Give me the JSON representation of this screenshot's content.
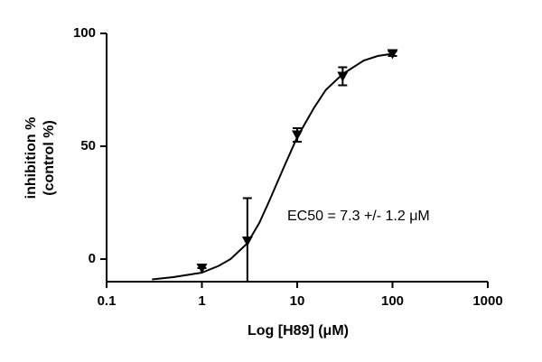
{
  "chart_data": {
    "type": "dose-response",
    "xlabel": "Log [H89] (μM)",
    "ylabel": [
      "inhibition %",
      "(control %)"
    ],
    "annotation": "EC50 = 7.3 +/- 1.2 μM",
    "log_x": true,
    "xlim": [
      0.1,
      1000
    ],
    "xticks": [
      0.1,
      1,
      10,
      100,
      1000
    ],
    "ylim": [
      -10,
      100
    ],
    "yticks": [
      0,
      50,
      100
    ],
    "color": "#000000",
    "x": [
      1,
      3,
      10,
      30,
      100
    ],
    "values": [
      -4,
      8,
      55,
      81,
      91
    ],
    "errors": [
      0,
      19,
      3,
      4,
      1
    ],
    "fit": {
      "x": [
        0.3,
        0.5,
        1,
        1.5,
        2,
        3,
        4,
        5,
        7.3,
        10,
        15,
        20,
        30,
        50,
        70,
        100
      ],
      "values": [
        -9,
        -8,
        -6,
        -3,
        0,
        7,
        16,
        25,
        41,
        54,
        67,
        75,
        82,
        88,
        90,
        91
      ]
    }
  }
}
